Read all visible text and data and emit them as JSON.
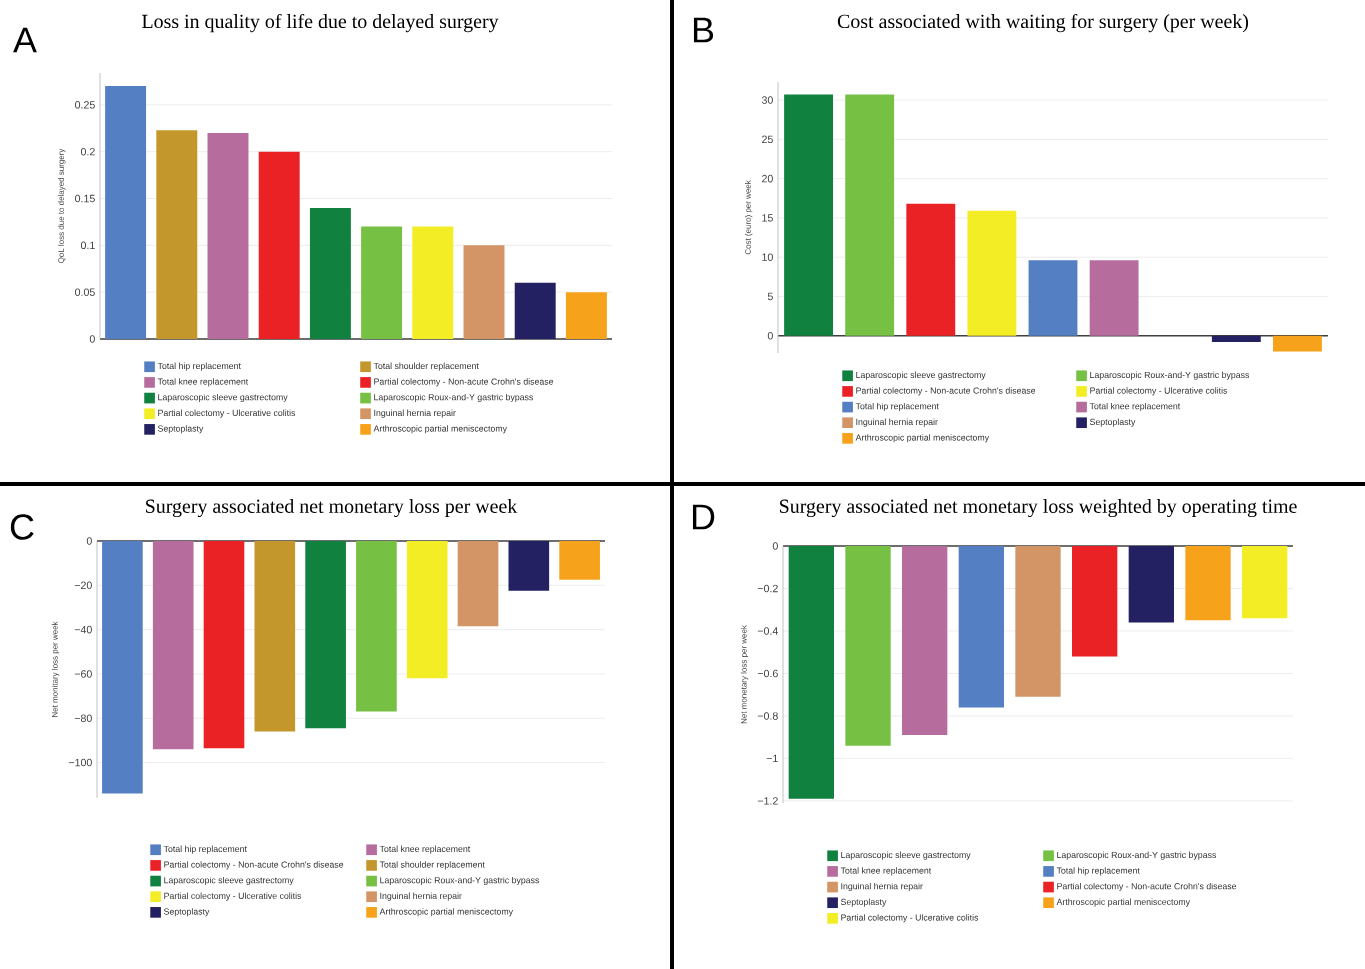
{
  "chart_data": [
    {
      "type": "bar",
      "title": "Loss in quality of life due to delayed surgery",
      "ylabel": "QoL loss due to delayed surgery",
      "annotations": [
        "A"
      ],
      "categories": [
        null,
        null,
        null,
        null,
        null,
        null,
        null,
        null,
        null,
        null
      ],
      "series": [
        {
          "name": "Total hip replacement",
          "color": "#557fc3",
          "values": [
            0.27,
            null,
            null,
            null,
            null,
            null,
            null,
            null,
            null,
            null
          ]
        },
        {
          "name": "Total shoulder replacement",
          "color": "#c4972d",
          "values": [
            null,
            0.223,
            null,
            null,
            null,
            null,
            null,
            null,
            null,
            null
          ]
        },
        {
          "name": "Total knee replacement",
          "color": "#b66d9e",
          "values": [
            null,
            null,
            0.22,
            null,
            null,
            null,
            null,
            null,
            null,
            null
          ]
        },
        {
          "name": "Partial colectomy - Non-acute Crohn's disease",
          "color": "#ea2226",
          "values": [
            null,
            null,
            null,
            0.2,
            null,
            null,
            null,
            null,
            null,
            null
          ]
        },
        {
          "name": "Laparoscopic sleeve gastrectomy",
          "color": "#118140",
          "values": [
            null,
            null,
            null,
            null,
            0.14,
            null,
            null,
            null,
            null,
            null
          ]
        },
        {
          "name": "Laparoscopic Roux-and-Y gastric bypass",
          "color": "#76c044",
          "values": [
            null,
            null,
            null,
            null,
            null,
            0.12,
            null,
            null,
            null,
            null
          ]
        },
        {
          "name": "Partial colectomy - Ulcerative colitis",
          "color": "#f3ed25",
          "values": [
            null,
            null,
            null,
            null,
            null,
            null,
            0.12,
            null,
            null,
            null
          ]
        },
        {
          "name": "Inguinal hernia repair",
          "color": "#d39466",
          "values": [
            null,
            null,
            null,
            null,
            null,
            null,
            null,
            0.1,
            null,
            null
          ]
        },
        {
          "name": "Septoplasty",
          "color": "#232162",
          "values": [
            null,
            null,
            null,
            null,
            null,
            null,
            null,
            null,
            0.06,
            null
          ]
        },
        {
          "name": "Arthroscopic partial meniscectomy",
          "color": "#f7a21b",
          "values": [
            null,
            null,
            null,
            null,
            null,
            null,
            null,
            null,
            null,
            0.05
          ]
        }
      ],
      "yticks": [
        0,
        0.05,
        0.1,
        0.15,
        0.2,
        0.25
      ],
      "grid": "y",
      "ylim": [
        0,
        0.284
      ],
      "legend": "bottom"
    },
    {
      "type": "bar",
      "title": "Cost associated with waiting for surgery (per week)",
      "ylabel": "Cost (euro) per week",
      "annotations": [
        "B"
      ],
      "categories": [
        null,
        null,
        null,
        null,
        null,
        null,
        null,
        null,
        null
      ],
      "series": [
        {
          "name": "Laparoscopic sleeve gastrectomy",
          "color": "#118140",
          "values": [
            30.7,
            null,
            null,
            null,
            null,
            null,
            null,
            null,
            null
          ]
        },
        {
          "name": "Laparoscopic Roux-and-Y gastric bypass",
          "color": "#76c044",
          "values": [
            null,
            30.7,
            null,
            null,
            null,
            null,
            null,
            null,
            null
          ]
        },
        {
          "name": "Partial colectomy - Non-acute Crohn's disease",
          "color": "#ea2226",
          "values": [
            null,
            null,
            16.8,
            null,
            null,
            null,
            null,
            null,
            null
          ]
        },
        {
          "name": "Partial colectomy - Ulcerative colitis",
          "color": "#f3ed25",
          "values": [
            null,
            null,
            null,
            15.9,
            null,
            null,
            null,
            null,
            null
          ]
        },
        {
          "name": "Total hip replacement",
          "color": "#557fc3",
          "values": [
            null,
            null,
            null,
            null,
            9.6,
            null,
            null,
            null,
            null
          ]
        },
        {
          "name": "Total knee replacement",
          "color": "#b66d9e",
          "values": [
            null,
            null,
            null,
            null,
            null,
            9.6,
            null,
            null,
            null
          ]
        },
        {
          "name": "Inguinal hernia repair",
          "color": "#d39466",
          "values": [
            null,
            null,
            null,
            null,
            null,
            null,
            0,
            null,
            null
          ]
        },
        {
          "name": "Septoplasty",
          "color": "#232162",
          "values": [
            null,
            null,
            null,
            null,
            null,
            null,
            null,
            -0.8,
            null
          ]
        },
        {
          "name": "Arthroscopic partial meniscectomy",
          "color": "#f7a21b",
          "values": [
            null,
            null,
            null,
            null,
            null,
            null,
            null,
            null,
            -2.0
          ]
        }
      ],
      "yticks": [
        0,
        5,
        10,
        15,
        20,
        25,
        30
      ],
      "ylim": [
        -2.2,
        32.3
      ],
      "grid": "y",
      "legend": "bottom"
    },
    {
      "type": "bar",
      "title": "Surgery associated net monetary loss per week",
      "ylabel": "Net monitary loss per week",
      "annotations": [
        "C"
      ],
      "categories": [
        null,
        null,
        null,
        null,
        null,
        null,
        null,
        null,
        null,
        null
      ],
      "series": [
        {
          "name": "Total hip replacement",
          "color": "#557fc3",
          "values": [
            -114,
            null,
            null,
            null,
            null,
            null,
            null,
            null,
            null,
            null
          ]
        },
        {
          "name": "Total knee replacement",
          "color": "#b66d9e",
          "values": [
            null,
            -94,
            null,
            null,
            null,
            null,
            null,
            null,
            null,
            null
          ]
        },
        {
          "name": "Partial colectomy - Non-acute Crohn's disease",
          "color": "#ea2226",
          "values": [
            null,
            null,
            -93.5,
            null,
            null,
            null,
            null,
            null,
            null,
            null
          ]
        },
        {
          "name": "Total shoulder replacement",
          "color": "#c4972d",
          "values": [
            null,
            null,
            null,
            -86,
            null,
            null,
            null,
            null,
            null,
            null
          ]
        },
        {
          "name": "Laparoscopic sleeve gastrectomy",
          "color": "#118140",
          "values": [
            null,
            null,
            null,
            null,
            -84.5,
            null,
            null,
            null,
            null,
            null
          ]
        },
        {
          "name": "Laparoscopic Roux-and-Y gastric bypass",
          "color": "#76c044",
          "values": [
            null,
            null,
            null,
            null,
            null,
            -77,
            null,
            null,
            null,
            null
          ]
        },
        {
          "name": "Partial colectomy - Ulcerative colitis",
          "color": "#f3ed25",
          "values": [
            null,
            null,
            null,
            null,
            null,
            null,
            -62,
            null,
            null,
            null
          ]
        },
        {
          "name": "Inguinal hernia repair",
          "color": "#d39466",
          "values": [
            null,
            null,
            null,
            null,
            null,
            null,
            null,
            -38.5,
            null,
            null
          ]
        },
        {
          "name": "Septoplasty",
          "color": "#232162",
          "values": [
            null,
            null,
            null,
            null,
            null,
            null,
            null,
            null,
            -22.5,
            null
          ]
        },
        {
          "name": "Arthroscopic partial meniscectomy",
          "color": "#f7a21b",
          "values": [
            null,
            null,
            null,
            null,
            null,
            null,
            null,
            null,
            null,
            -17.5
          ]
        }
      ],
      "yticks": [
        {
          "value": -100,
          "label": "−100"
        },
        {
          "value": -80,
          "label": "−80"
        },
        {
          "value": -60,
          "label": "−60"
        },
        {
          "value": -40,
          "label": "−40"
        },
        {
          "value": -20,
          "label": "−20"
        },
        0
      ],
      "ylim": [
        -116,
        0
      ],
      "grid": "y",
      "legend": "bottom"
    },
    {
      "type": "bar",
      "title": "Surgery associated net monetary loss weighted by operating time",
      "ylabel": "Net monetary loss per week",
      "annotations": [
        "D"
      ],
      "categories": [
        null,
        null,
        null,
        null,
        null,
        null,
        null,
        null,
        null
      ],
      "series": [
        {
          "name": "Laparoscopic sleeve gastrectomy",
          "color": "#118140",
          "values": [
            -1.19,
            null,
            null,
            null,
            null,
            null,
            null,
            null,
            null
          ]
        },
        {
          "name": "Laparoscopic Roux-and-Y gastric bypass",
          "color": "#76c044",
          "values": [
            null,
            -0.94,
            null,
            null,
            null,
            null,
            null,
            null,
            null
          ]
        },
        {
          "name": "Total knee replacement",
          "color": "#b66d9e",
          "values": [
            null,
            null,
            -0.89,
            null,
            null,
            null,
            null,
            null,
            null
          ]
        },
        {
          "name": "Total hip replacement",
          "color": "#557fc3",
          "values": [
            null,
            null,
            null,
            -0.76,
            null,
            null,
            null,
            null,
            null
          ]
        },
        {
          "name": "Inguinal hernia repair",
          "color": "#d39466",
          "values": [
            null,
            null,
            null,
            null,
            -0.71,
            null,
            null,
            null,
            null
          ]
        },
        {
          "name": "Partial colectomy - Non-acute Crohn's disease",
          "color": "#ea2226",
          "values": [
            null,
            null,
            null,
            null,
            null,
            -0.52,
            null,
            null,
            null
          ]
        },
        {
          "name": "Septoplasty",
          "color": "#232162",
          "values": [
            null,
            null,
            null,
            null,
            null,
            null,
            -0.36,
            null,
            null
          ]
        },
        {
          "name": "Arthroscopic partial meniscectomy",
          "color": "#f7a21b",
          "values": [
            null,
            null,
            null,
            null,
            null,
            null,
            null,
            -0.35,
            null
          ]
        },
        {
          "name": "Partial colectomy - Ulcerative colitis",
          "color": "#f3ed25",
          "values": [
            null,
            null,
            null,
            null,
            null,
            null,
            null,
            null,
            -0.34
          ]
        }
      ],
      "ylim": [
        -1.21,
        0
      ],
      "yticks": [
        {
          "value": -1.2,
          "label": "−1.2"
        },
        {
          "value": -1,
          "label": "−1"
        },
        {
          "value": -0.8,
          "label": "−0.8"
        },
        {
          "value": -0.6,
          "label": "−0.6"
        },
        {
          "value": -0.4,
          "label": "−0.4"
        },
        {
          "value": -0.2,
          "label": "−0.2"
        },
        0
      ],
      "grid": "y",
      "legend": "bottom"
    }
  ]
}
